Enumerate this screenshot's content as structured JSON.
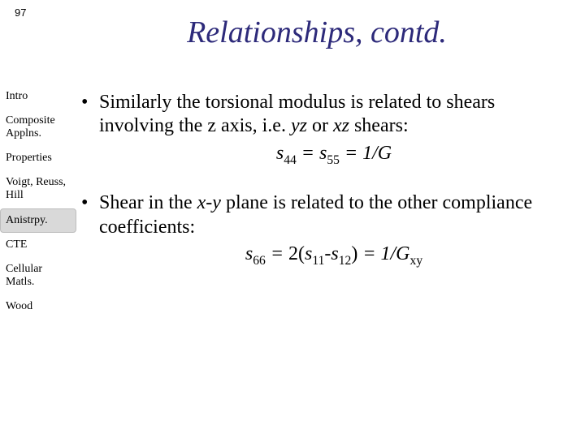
{
  "page_number": "97",
  "title": "Relationships, contd.",
  "title_color": "#2d2a7a",
  "sidebar": {
    "items": [
      {
        "label": "Intro"
      },
      {
        "label": "Composite Applns."
      },
      {
        "label": "Properties"
      },
      {
        "label": "Voigt, Reuss, Hill"
      },
      {
        "label": "Anistrpy."
      },
      {
        "label": "CTE"
      },
      {
        "label": "Cellular Matls."
      },
      {
        "label": "Wood"
      }
    ],
    "active_index": 4,
    "active_bg": "#d9d9d9",
    "active_border": "#bdbdbd"
  },
  "content": {
    "font_size_pt": 24,
    "bullets": [
      {
        "pre": "Similarly the torsional modulus is related to shears involving the z axis, i.e. ",
        "it1": "yz",
        "mid1": " or ",
        "it2": "xz",
        "post": " shears:",
        "eq": {
          "lhs_sym": "s",
          "lhs_sub": "44",
          "eq1": " = ",
          "mid_sym": "s",
          "mid_sub": "55",
          "eq2": " = ",
          "rhs": "1/G"
        }
      },
      {
        "pre": "Shear in the ",
        "it1": "x-y",
        "mid1": " plane is related to the other compliance coefficients:",
        "it2": "",
        "post": "",
        "eq": {
          "lhs_sym": "s",
          "lhs_sub": "66",
          "eq1": " = ",
          "mid_expr": "2(",
          "a_sym": "s",
          "a_sub": "11",
          "minus": "-",
          "b_sym": "s",
          "b_sub": "12",
          "close": ")",
          "eq2": " = ",
          "rhs": "1/G",
          "rhs_sub": "xy"
        }
      }
    ]
  },
  "background_color": "#ffffff"
}
